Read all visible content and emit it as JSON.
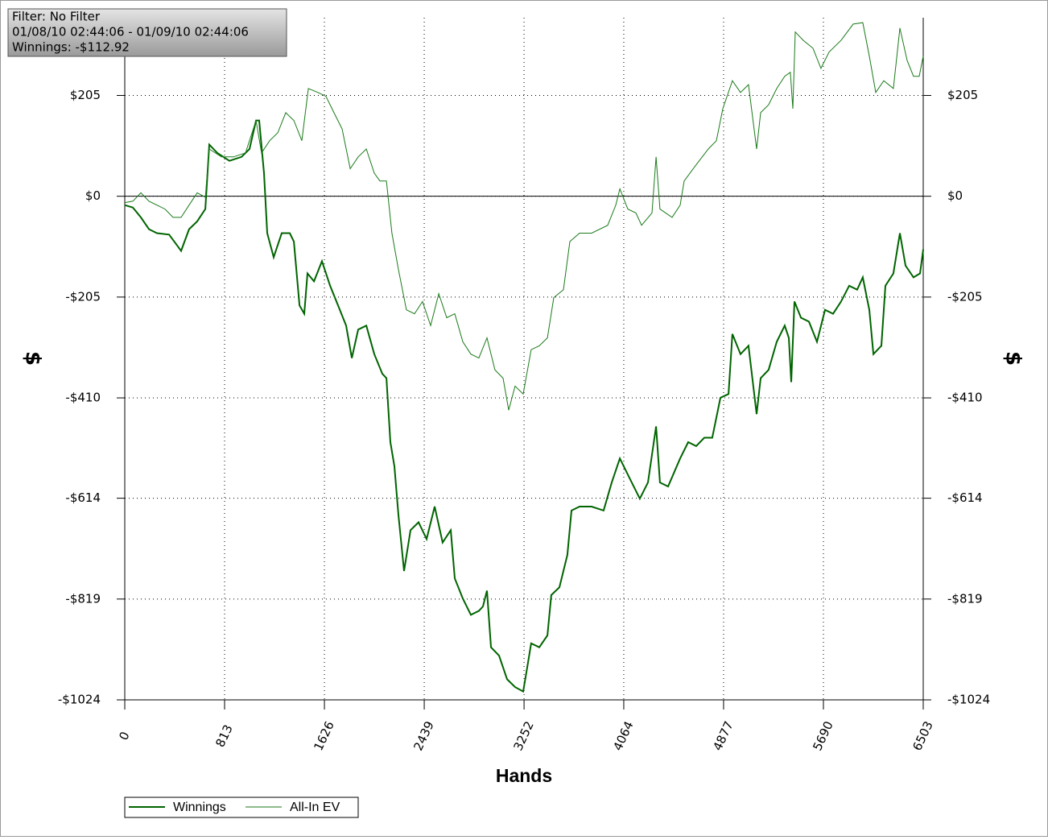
{
  "chart_data": {
    "type": "line",
    "annotations": [
      "Filter: No Filter",
      "01/08/10 02:44:06 - 01/09/10 02:44:06",
      "Winnings: -$112.92"
    ],
    "xlabel": "Hands",
    "ylabel": "$",
    "xlim": [
      0,
      6503
    ],
    "xticks": [
      0,
      813,
      1626,
      2439,
      3252,
      4064,
      4877,
      5690,
      6503
    ],
    "ylim": [
      -1024,
      363
    ],
    "yticks": [
      {
        "value": -1024,
        "label": "-$1024"
      },
      {
        "value": -819,
        "label": "-$819"
      },
      {
        "value": -614,
        "label": "-$614"
      },
      {
        "value": -410,
        "label": "-$410"
      },
      {
        "value": -205,
        "label": "-$205"
      },
      {
        "value": 0,
        "label": "$0"
      },
      {
        "value": 205,
        "label": "$205"
      }
    ],
    "grid": true,
    "series": [
      {
        "name": "Winnings",
        "color": "#006400",
        "line_width": 2,
        "x": [
          0,
          66,
          131,
          197,
          262,
          361,
          426,
          459,
          524,
          590,
          656,
          688,
          754,
          852,
          951,
          1016,
          1069,
          1095,
          1134,
          1160,
          1213,
          1278,
          1344,
          1377,
          1423,
          1462,
          1488,
          1541,
          1606,
          1672,
          1737,
          1803,
          1849,
          1901,
          1967,
          2032,
          2098,
          2131,
          2163,
          2196,
          2229,
          2275,
          2327,
          2393,
          2458,
          2524,
          2589,
          2655,
          2688,
          2753,
          2819,
          2884,
          2917,
          2950,
          2983,
          3048,
          3114,
          3179,
          3245,
          3278,
          3310,
          3376,
          3442,
          3474,
          3540,
          3605,
          3638,
          3704,
          3802,
          3900,
          3966,
          4032,
          4097,
          4195,
          4261,
          4327,
          4359,
          4425,
          4523,
          4589,
          4654,
          4720,
          4785,
          4851,
          4917,
          4949,
          5015,
          5080,
          5146,
          5179,
          5244,
          5310,
          5375,
          5408,
          5428,
          5454,
          5507,
          5572,
          5638,
          5703,
          5769,
          5834,
          5900,
          5965,
          6011,
          6064,
          6097,
          6162,
          6195,
          6260,
          6313,
          6359,
          6424,
          6477,
          6503
        ],
        "values": [
          -18,
          -23,
          -43,
          -67,
          -75,
          -78,
          -100,
          -111,
          -67,
          -51,
          -26,
          105,
          88,
          72,
          80,
          96,
          154,
          154,
          47,
          -75,
          -124,
          -75,
          -75,
          -92,
          -222,
          -239,
          -157,
          -173,
          -132,
          -182,
          -222,
          -263,
          -329,
          -271,
          -263,
          -321,
          -361,
          -370,
          -500,
          -549,
          -648,
          -762,
          -679,
          -663,
          -697,
          -631,
          -704,
          -679,
          -777,
          -818,
          -851,
          -843,
          -834,
          -802,
          -917,
          -934,
          -982,
          -998,
          -1007,
          -958,
          -909,
          -917,
          -893,
          -811,
          -795,
          -729,
          -639,
          -631,
          -631,
          -639,
          -582,
          -533,
          -566,
          -615,
          -582,
          -468,
          -582,
          -590,
          -533,
          -500,
          -508,
          -491,
          -491,
          -410,
          -402,
          -280,
          -321,
          -304,
          -443,
          -370,
          -353,
          -296,
          -263,
          -288,
          -378,
          -214,
          -247,
          -255,
          -296,
          -231,
          -239,
          -214,
          -182,
          -190,
          -165,
          -231,
          -321,
          -304,
          -182,
          -157,
          -75,
          -141,
          -165,
          -157,
          -108
        ]
      },
      {
        "name": "All-In EV",
        "color": "#1a7a1a",
        "line_width": 1,
        "x": [
          0,
          66,
          131,
          197,
          262,
          328,
          393,
          459,
          524,
          590,
          656,
          688,
          787,
          885,
          983,
          1069,
          1114,
          1180,
          1246,
          1311,
          1377,
          1442,
          1495,
          1573,
          1639,
          1704,
          1770,
          1836,
          1901,
          1967,
          2032,
          2078,
          2131,
          2176,
          2229,
          2294,
          2360,
          2425,
          2491,
          2557,
          2622,
          2688,
          2753,
          2819,
          2884,
          2950,
          3015,
          3081,
          3127,
          3179,
          3245,
          3310,
          3376,
          3442,
          3494,
          3573,
          3625,
          3704,
          3802,
          3933,
          3999,
          4032,
          4097,
          4163,
          4209,
          4294,
          4327,
          4359,
          4458,
          4523,
          4556,
          4654,
          4753,
          4818,
          4871,
          4949,
          5015,
          5080,
          5146,
          5179,
          5244,
          5310,
          5375,
          5421,
          5441,
          5461,
          5526,
          5605,
          5670,
          5736,
          5834,
          5933,
          6011,
          6064,
          6116,
          6182,
          6260,
          6313,
          6372,
          6424,
          6470,
          6503
        ],
        "values": [
          -13,
          -10,
          7,
          -10,
          -18,
          -26,
          -43,
          -43,
          -18,
          7,
          -2,
          96,
          80,
          80,
          88,
          154,
          88,
          113,
          129,
          170,
          154,
          113,
          219,
          211,
          203,
          170,
          137,
          56,
          80,
          96,
          47,
          31,
          31,
          -75,
          -149,
          -231,
          -239,
          -214,
          -263,
          -198,
          -247,
          -239,
          -296,
          -321,
          -329,
          -288,
          -353,
          -370,
          -435,
          -386,
          -402,
          -312,
          -304,
          -288,
          -206,
          -190,
          -92,
          -75,
          -75,
          -59,
          -18,
          15,
          -26,
          -34,
          -59,
          -34,
          80,
          -26,
          -43,
          -18,
          31,
          64,
          96,
          113,
          178,
          235,
          211,
          227,
          96,
          170,
          186,
          219,
          244,
          252,
          178,
          334,
          317,
          301,
          260,
          293,
          317,
          350,
          353,
          285,
          211,
          235,
          219,
          342,
          276,
          244,
          244,
          285
        ]
      }
    ]
  }
}
